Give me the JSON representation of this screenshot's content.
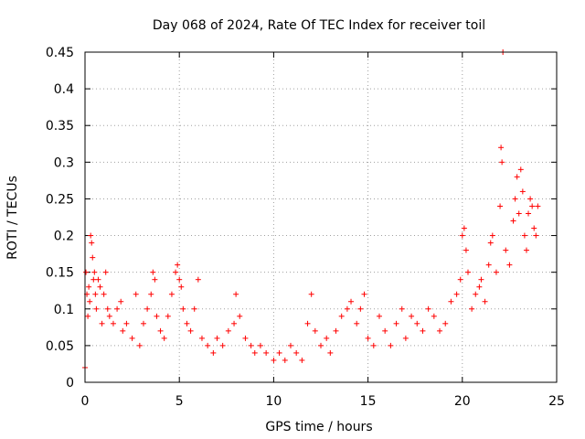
{
  "chart_data": {
    "type": "scatter",
    "title": "Day 068 of 2024, Rate Of TEC Index for receiver toil",
    "xlabel": "GPS time / hours",
    "ylabel": "ROTI / TECUs",
    "xlim": [
      0,
      25
    ],
    "ylim": [
      0,
      0.45
    ],
    "xticks": [
      0,
      5,
      10,
      15,
      20,
      25
    ],
    "xtick_labels": [
      "0",
      "5",
      "10",
      "15",
      "20",
      "25"
    ],
    "yticks": [
      0,
      0.05,
      0.1,
      0.15,
      0.2,
      0.25,
      0.3,
      0.35,
      0.4,
      0.45
    ],
    "ytick_labels": [
      "0",
      "0.05",
      "0.1",
      "0.15",
      "0.2",
      "0.25",
      "0.3",
      "0.35",
      "0.4",
      "0.45"
    ],
    "grid": true,
    "marker": "+",
    "color": "#ff0000",
    "series": [
      {
        "name": "ROTI",
        "points": [
          [
            0.0,
            0.02
          ],
          [
            0.05,
            0.15
          ],
          [
            0.1,
            0.12
          ],
          [
            0.15,
            0.09
          ],
          [
            0.2,
            0.13
          ],
          [
            0.25,
            0.11
          ],
          [
            0.3,
            0.2
          ],
          [
            0.35,
            0.19
          ],
          [
            0.4,
            0.17
          ],
          [
            0.45,
            0.14
          ],
          [
            0.5,
            0.15
          ],
          [
            0.55,
            0.12
          ],
          [
            0.6,
            0.1
          ],
          [
            0.7,
            0.14
          ],
          [
            0.8,
            0.13
          ],
          [
            0.9,
            0.08
          ],
          [
            1.0,
            0.12
          ],
          [
            1.1,
            0.15
          ],
          [
            1.2,
            0.1
          ],
          [
            1.3,
            0.09
          ],
          [
            1.5,
            0.08
          ],
          [
            1.7,
            0.1
          ],
          [
            1.9,
            0.11
          ],
          [
            2.0,
            0.07
          ],
          [
            2.2,
            0.08
          ],
          [
            2.5,
            0.06
          ],
          [
            2.7,
            0.12
          ],
          [
            2.9,
            0.05
          ],
          [
            3.1,
            0.08
          ],
          [
            3.3,
            0.1
          ],
          [
            3.5,
            0.12
          ],
          [
            3.6,
            0.15
          ],
          [
            3.7,
            0.14
          ],
          [
            3.8,
            0.09
          ],
          [
            4.0,
            0.07
          ],
          [
            4.2,
            0.06
          ],
          [
            4.4,
            0.09
          ],
          [
            4.6,
            0.12
          ],
          [
            4.8,
            0.15
          ],
          [
            4.9,
            0.16
          ],
          [
            5.0,
            0.14
          ],
          [
            5.1,
            0.13
          ],
          [
            5.2,
            0.1
          ],
          [
            5.4,
            0.08
          ],
          [
            5.6,
            0.07
          ],
          [
            5.8,
            0.1
          ],
          [
            6.0,
            0.14
          ],
          [
            6.2,
            0.06
          ],
          [
            6.5,
            0.05
          ],
          [
            6.8,
            0.04
          ],
          [
            7.0,
            0.06
          ],
          [
            7.3,
            0.05
          ],
          [
            7.6,
            0.07
          ],
          [
            7.9,
            0.08
          ],
          [
            8.0,
            0.12
          ],
          [
            8.2,
            0.09
          ],
          [
            8.5,
            0.06
          ],
          [
            8.8,
            0.05
          ],
          [
            9.0,
            0.04
          ],
          [
            9.3,
            0.05
          ],
          [
            9.6,
            0.04
          ],
          [
            10.0,
            0.03
          ],
          [
            10.3,
            0.04
          ],
          [
            10.6,
            0.03
          ],
          [
            10.9,
            0.05
          ],
          [
            11.2,
            0.04
          ],
          [
            11.5,
            0.03
          ],
          [
            11.8,
            0.08
          ],
          [
            12.0,
            0.12
          ],
          [
            12.2,
            0.07
          ],
          [
            12.5,
            0.05
          ],
          [
            12.8,
            0.06
          ],
          [
            13.0,
            0.04
          ],
          [
            13.3,
            0.07
          ],
          [
            13.6,
            0.09
          ],
          [
            13.9,
            0.1
          ],
          [
            14.1,
            0.11
          ],
          [
            14.4,
            0.08
          ],
          [
            14.6,
            0.1
          ],
          [
            14.8,
            0.12
          ],
          [
            15.0,
            0.06
          ],
          [
            15.3,
            0.05
          ],
          [
            15.6,
            0.09
          ],
          [
            15.9,
            0.07
          ],
          [
            16.2,
            0.05
          ],
          [
            16.5,
            0.08
          ],
          [
            16.8,
            0.1
          ],
          [
            17.0,
            0.06
          ],
          [
            17.3,
            0.09
          ],
          [
            17.6,
            0.08
          ],
          [
            17.9,
            0.07
          ],
          [
            18.2,
            0.1
          ],
          [
            18.5,
            0.09
          ],
          [
            18.8,
            0.07
          ],
          [
            19.1,
            0.08
          ],
          [
            19.4,
            0.11
          ],
          [
            19.7,
            0.12
          ],
          [
            19.9,
            0.14
          ],
          [
            20.0,
            0.2
          ],
          [
            20.1,
            0.21
          ],
          [
            20.2,
            0.18
          ],
          [
            20.3,
            0.15
          ],
          [
            20.5,
            0.1
          ],
          [
            20.7,
            0.12
          ],
          [
            20.9,
            0.13
          ],
          [
            21.0,
            0.14
          ],
          [
            21.2,
            0.11
          ],
          [
            21.4,
            0.16
          ],
          [
            21.5,
            0.19
          ],
          [
            21.6,
            0.2
          ],
          [
            21.8,
            0.15
          ],
          [
            22.0,
            0.24
          ],
          [
            22.05,
            0.32
          ],
          [
            22.1,
            0.3
          ],
          [
            22.15,
            0.45
          ],
          [
            22.3,
            0.18
          ],
          [
            22.5,
            0.16
          ],
          [
            22.7,
            0.22
          ],
          [
            22.8,
            0.25
          ],
          [
            22.9,
            0.28
          ],
          [
            23.0,
            0.23
          ],
          [
            23.1,
            0.29
          ],
          [
            23.2,
            0.26
          ],
          [
            23.3,
            0.2
          ],
          [
            23.4,
            0.18
          ],
          [
            23.5,
            0.23
          ],
          [
            23.6,
            0.25
          ],
          [
            23.7,
            0.24
          ],
          [
            23.8,
            0.21
          ],
          [
            23.9,
            0.2
          ],
          [
            24.0,
            0.24
          ]
        ]
      }
    ]
  }
}
